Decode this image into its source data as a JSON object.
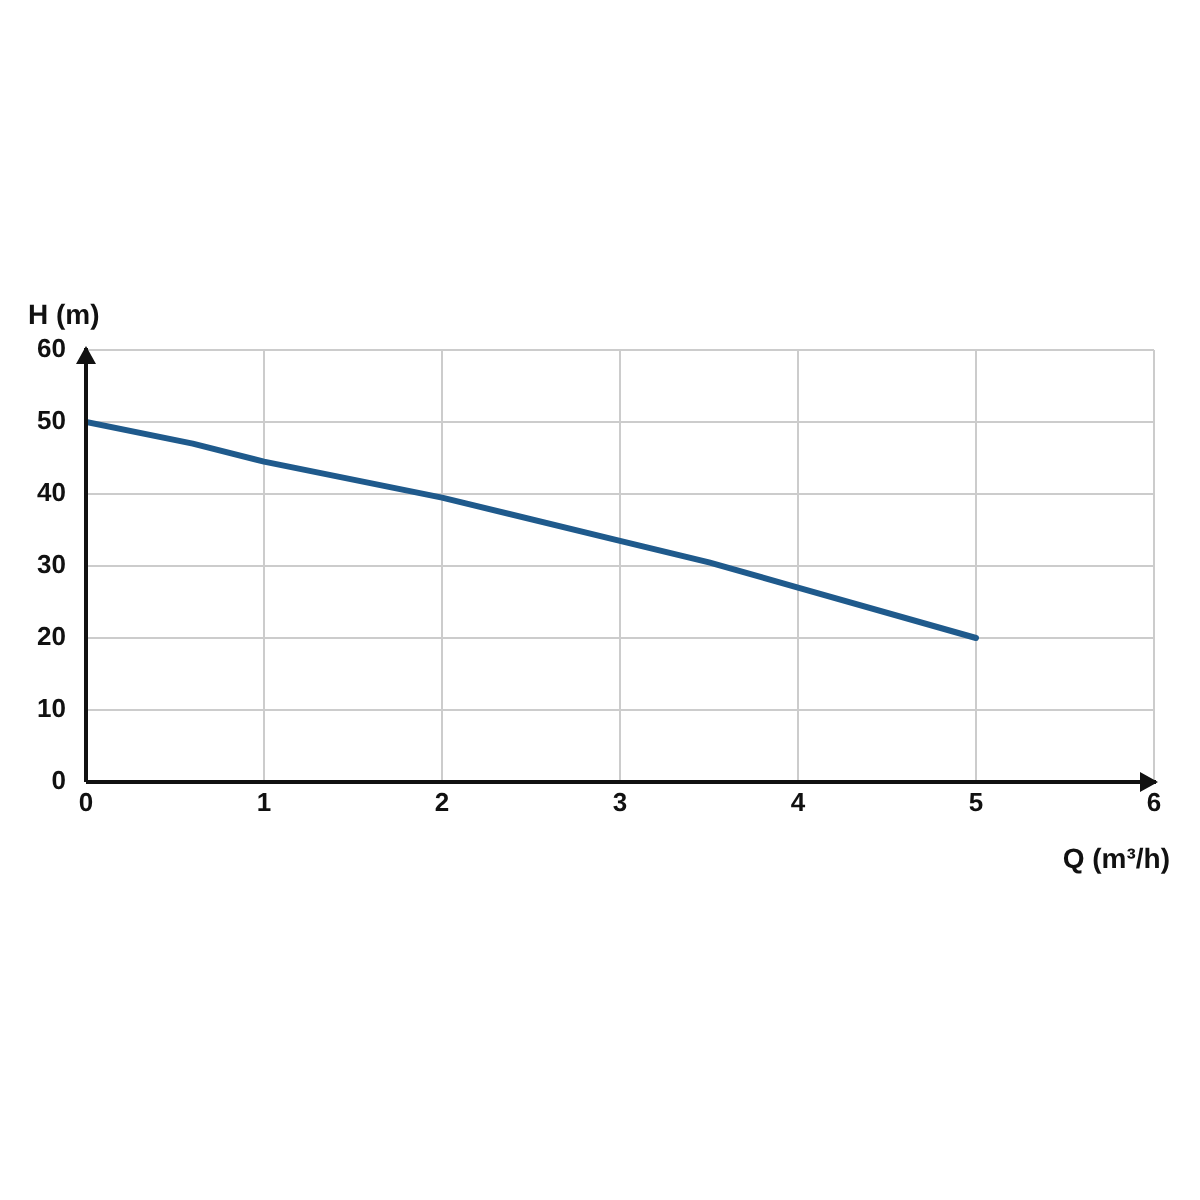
{
  "chart_data": {
    "type": "line",
    "xlabel": "Q (m³/h)",
    "ylabel": "H (m)",
    "x": [
      0,
      0.6,
      1,
      2,
      3,
      3.5,
      4,
      5
    ],
    "series": [
      {
        "color": "#1f5a8c",
        "values": [
          50,
          47,
          44.5,
          39.5,
          33.5,
          30.5,
          27,
          20
        ]
      }
    ],
    "xlim": [
      0,
      6
    ],
    "xticks": [
      0,
      1,
      2,
      3,
      4,
      5,
      6
    ],
    "ylim": [
      0,
      60
    ],
    "yticks": [
      0,
      10,
      20,
      30,
      40,
      50,
      60
    ],
    "grid": true,
    "legend": false,
    "marker": "none",
    "line_style": "solid"
  }
}
